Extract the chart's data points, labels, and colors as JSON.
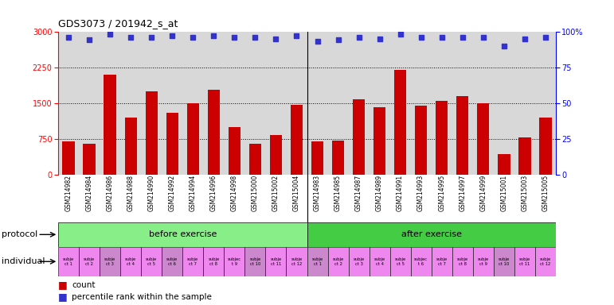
{
  "title": "GDS3073 / 201942_s_at",
  "samples": [
    "GSM214982",
    "GSM214984",
    "GSM214986",
    "GSM214988",
    "GSM214990",
    "GSM214992",
    "GSM214994",
    "GSM214996",
    "GSM214998",
    "GSM215000",
    "GSM215002",
    "GSM215004",
    "GSM214983",
    "GSM214985",
    "GSM214987",
    "GSM214989",
    "GSM214991",
    "GSM214993",
    "GSM214995",
    "GSM214997",
    "GSM214999",
    "GSM215001",
    "GSM215003",
    "GSM215005"
  ],
  "counts": [
    700,
    650,
    2100,
    1200,
    1750,
    1300,
    1500,
    1780,
    1000,
    650,
    830,
    1470,
    700,
    720,
    1580,
    1420,
    2200,
    1450,
    1550,
    1650,
    1500,
    430,
    790,
    1200
  ],
  "percentiles": [
    96,
    94,
    98,
    96,
    96,
    97,
    96,
    97,
    96,
    96,
    95,
    97,
    93,
    94,
    96,
    95,
    98,
    96,
    96,
    96,
    96,
    90,
    95,
    96
  ],
  "bar_color": "#cc0000",
  "dot_color": "#3333cc",
  "ylim_left": [
    0,
    3000
  ],
  "yticks_left": [
    0,
    750,
    1500,
    2250,
    3000
  ],
  "ylim_right": [
    0,
    100
  ],
  "yticks_right": [
    0,
    25,
    50,
    75,
    100
  ],
  "before_exercise_count": 12,
  "after_exercise_count": 12,
  "protocol_label": "protocol",
  "individual_label": "individual",
  "before_label": "before exercise",
  "after_label": "after exercise",
  "protocol_color": "#88ee88",
  "after_color": "#44cc44",
  "individual_colors_before": [
    "#ee88ee",
    "#ee88ee",
    "#cc88cc",
    "#ee88ee",
    "#ee88ee",
    "#cc88cc",
    "#ee88ee",
    "#ee88ee",
    "#ee88ee",
    "#cc88cc",
    "#ee88ee",
    "#ee88ee"
  ],
  "individual_colors_after": [
    "#cc88cc",
    "#ee88ee",
    "#ee88ee",
    "#ee88ee",
    "#ee88ee",
    "#ee88ee",
    "#ee88ee",
    "#ee88ee",
    "#ee88ee",
    "#cc88cc",
    "#ee88ee",
    "#ee88ee"
  ],
  "individual_labels_before": [
    "subje\nct 1",
    "subje\nct 2",
    "subje\nct 3",
    "subje\nct 4",
    "subje\nct 5",
    "subje\nct 6",
    "subje\nct 7",
    "subje\nct 8",
    "subjec\nt 9",
    "subje\nct 10",
    "subje\nct 11",
    "subje\nct 12"
  ],
  "individual_labels_after": [
    "subje\nct 1",
    "subje\nct 2",
    "subje\nct 3",
    "subje\nct 4",
    "subje\nct 5",
    "subjec\nt 6",
    "subje\nct 7",
    "subje\nct 8",
    "subje\nct 9",
    "subje\nct 10",
    "subje\nct 11",
    "subje\nct 12"
  ],
  "background_color": "#d8d8d8",
  "legend_count_label": "count",
  "legend_pct_label": "percentile rank within the sample"
}
